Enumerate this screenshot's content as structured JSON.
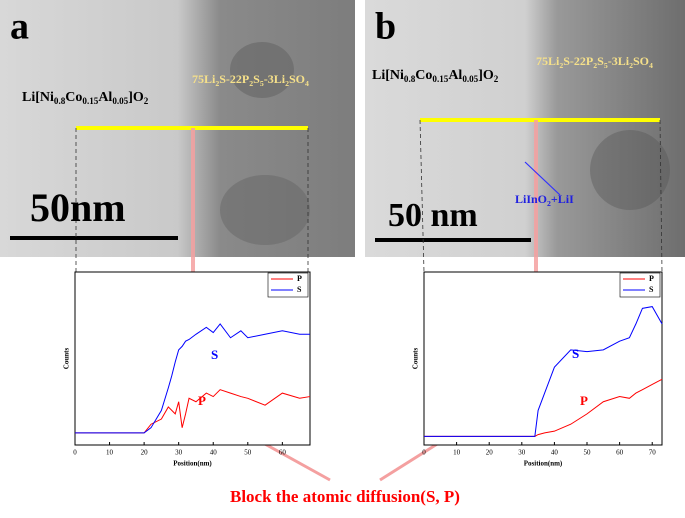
{
  "panels": [
    {
      "letter": "a",
      "cathode": [
        "Li[Ni",
        "0.8",
        "Co",
        "0.15",
        "Al",
        "0.05",
        "]O",
        "2"
      ],
      "electrolyte": [
        "75Li",
        "2",
        "S-22P",
        "2",
        "S",
        "5",
        "-3Li",
        "2",
        "SO",
        "4"
      ],
      "scale_bar": "50nm"
    },
    {
      "letter": "b",
      "cathode": [
        "Li[Ni",
        "0.8",
        "Co",
        "0.15",
        "Al",
        "0.05",
        "]O",
        "2"
      ],
      "electrolyte": [
        "75Li",
        "2",
        "S-22P",
        "2",
        "S",
        "5",
        "-3Li",
        "2",
        "SO",
        "4"
      ],
      "scale_bar": "50 nm",
      "interlayer": [
        "LiInO",
        "2",
        "+LiI"
      ]
    }
  ],
  "chart_data": [
    {
      "type": "line",
      "xlabel": "Position(nm)",
      "ylabel": "Counts",
      "xlim": [
        0,
        68
      ],
      "xticks": [
        0,
        10,
        20,
        30,
        40,
        50,
        60
      ],
      "ylim": [
        0,
        100
      ],
      "x": [
        0,
        10,
        20,
        22,
        25,
        27,
        28,
        29,
        30,
        31,
        32,
        33,
        35,
        38,
        40,
        42,
        45,
        48,
        50,
        55,
        60,
        65,
        68
      ],
      "series": [
        {
          "name": "P",
          "color": "#ff0000",
          "values": [
            7,
            7,
            7,
            12,
            15,
            22,
            20,
            18,
            25,
            10,
            18,
            27,
            25,
            30,
            28,
            32,
            30,
            28,
            27,
            23,
            30,
            27,
            28
          ]
        },
        {
          "name": "S",
          "color": "#0000ff",
          "values": [
            7,
            7,
            7,
            10,
            20,
            33,
            40,
            48,
            55,
            57,
            60,
            61,
            64,
            68,
            65,
            70,
            62,
            66,
            62,
            64,
            66,
            64,
            64
          ]
        }
      ],
      "annotations": [
        "S",
        "P"
      ]
    },
    {
      "type": "line",
      "xlabel": "Position(nm)",
      "ylabel": "Counts",
      "xlim": [
        0,
        73
      ],
      "xticks": [
        0,
        10,
        20,
        30,
        40,
        50,
        60,
        70
      ],
      "ylim": [
        0,
        100
      ],
      "x": [
        0,
        10,
        20,
        30,
        34,
        35,
        37,
        40,
        45,
        50,
        55,
        60,
        63,
        65,
        67,
        70,
        73
      ],
      "series": [
        {
          "name": "P",
          "color": "#ff0000",
          "values": [
            5,
            5,
            5,
            5,
            5,
            6,
            7,
            8,
            12,
            18,
            25,
            28,
            27,
            30,
            32,
            35,
            38
          ]
        },
        {
          "name": "S",
          "color": "#0000ff",
          "values": [
            5,
            5,
            5,
            5,
            5,
            20,
            30,
            45,
            55,
            54,
            55,
            60,
            62,
            70,
            79,
            80,
            70
          ]
        }
      ],
      "annotations": [
        "S",
        "P"
      ]
    }
  ],
  "caption": "Block the atomic diffusion(S, P)"
}
